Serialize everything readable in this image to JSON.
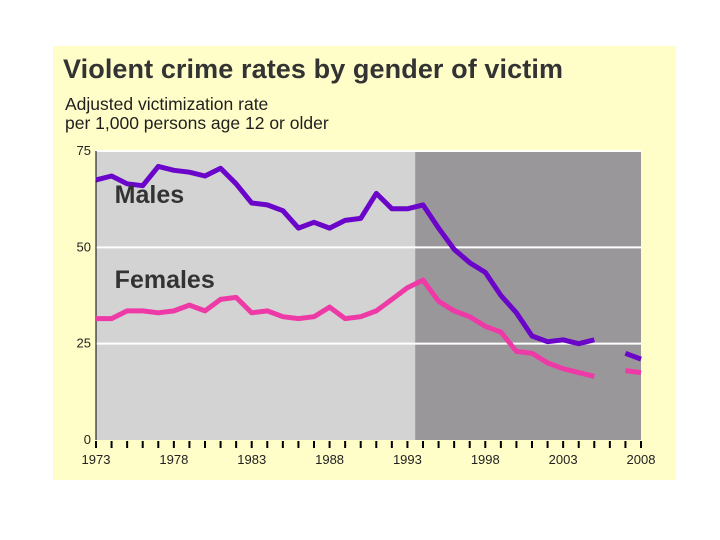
{
  "colors": {
    "panel_background": "#fffdc8",
    "plot_background": "#d3d3d3",
    "shaded_region": "#9a979a",
    "males_line": "#6a05c9",
    "females_line": "#ee3aa6",
    "gridline": "#ffffff",
    "axis": "#000000"
  },
  "chart_data": {
    "type": "line",
    "title": "Violent crime rates by gender of victim",
    "subtitle_lines": [
      "Adjusted victimization rate",
      "per 1,000 persons age 12 or older"
    ],
    "xlabel": "",
    "ylabel": "",
    "xlim": [
      1973,
      2008
    ],
    "ylim": [
      0,
      75
    ],
    "grid": true,
    "x_ticks": [
      1973,
      1978,
      1983,
      1988,
      1993,
      1998,
      2003,
      2008
    ],
    "y_ticks": [
      0,
      25,
      50,
      75
    ],
    "shaded_region": {
      "from": 1993.5,
      "to": 2008
    },
    "series": [
      {
        "name": "Males",
        "label": "Males",
        "segments": [
          [
            [
              1973,
              67.5
            ],
            [
              1974,
              68.5
            ],
            [
              1975,
              66.5
            ],
            [
              1976,
              66
            ],
            [
              1977,
              71
            ],
            [
              1978,
              70
            ],
            [
              1979,
              69.5
            ],
            [
              1980,
              68.5
            ],
            [
              1981,
              70.5
            ],
            [
              1982,
              66.5
            ],
            [
              1983,
              61.5
            ],
            [
              1984,
              61
            ],
            [
              1985,
              59.5
            ],
            [
              1986,
              55
            ],
            [
              1987,
              56.5
            ],
            [
              1988,
              55
            ],
            [
              1989,
              57
            ],
            [
              1990,
              57.5
            ],
            [
              1991,
              64
            ],
            [
              1992,
              60
            ],
            [
              1993,
              60
            ],
            [
              1994,
              61
            ],
            [
              1995,
              55
            ],
            [
              1996,
              49.5
            ],
            [
              1997,
              46
            ],
            [
              1998,
              43.5
            ],
            [
              1999,
              37.5
            ],
            [
              2000,
              33
            ],
            [
              2001,
              27
            ],
            [
              2002,
              25.5
            ],
            [
              2003,
              26
            ],
            [
              2004,
              25
            ],
            [
              2005,
              26
            ]
          ],
          [
            [
              2007,
              22.5
            ],
            [
              2008,
              21
            ]
          ]
        ]
      },
      {
        "name": "Females",
        "label": "Females",
        "segments": [
          [
            [
              1973,
              31.5
            ],
            [
              1974,
              31.5
            ],
            [
              1975,
              33.5
            ],
            [
              1976,
              33.5
            ],
            [
              1977,
              33
            ],
            [
              1978,
              33.5
            ],
            [
              1979,
              35
            ],
            [
              1980,
              33.5
            ],
            [
              1981,
              36.5
            ],
            [
              1982,
              37
            ],
            [
              1983,
              33
            ],
            [
              1984,
              33.5
            ],
            [
              1985,
              32
            ],
            [
              1986,
              31.5
            ],
            [
              1987,
              32
            ],
            [
              1988,
              34.5
            ],
            [
              1989,
              31.5
            ],
            [
              1990,
              32
            ],
            [
              1991,
              33.5
            ],
            [
              1992,
              36.5
            ],
            [
              1993,
              39.5
            ],
            [
              1994,
              41.5
            ],
            [
              1995,
              36
            ],
            [
              1996,
              33.5
            ],
            [
              1997,
              32
            ],
            [
              1998,
              29.5
            ],
            [
              1999,
              28
            ],
            [
              2000,
              23
            ],
            [
              2001,
              22.5
            ],
            [
              2002,
              20
            ],
            [
              2003,
              18.5
            ],
            [
              2004,
              17.5
            ],
            [
              2005,
              16.5
            ]
          ],
          [
            [
              2007,
              18
            ],
            [
              2008,
              17.5
            ]
          ]
        ]
      }
    ]
  }
}
